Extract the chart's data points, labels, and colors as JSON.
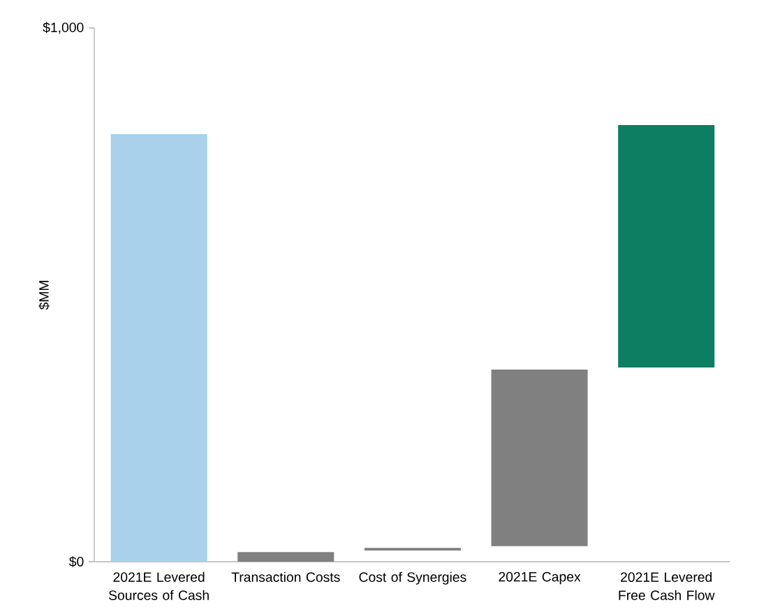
{
  "chart_data": {
    "type": "bar",
    "ylabel": "$MM",
    "categories": [
      "2021E Levered Sources of Cash",
      "Transaction Costs",
      "Cost of Synergies",
      "2021E Capex",
      "2021E Levered Free Cash Flow"
    ],
    "values": [
      801,
      18,
      5,
      331,
      454
    ],
    "base": [
      0,
      0,
      21,
      29,
      364
    ],
    "colors": [
      "#a9d1ec",
      "#808080",
      "#808080",
      "#808080",
      "#0e7e63"
    ],
    "ylim": [
      0,
      1000
    ],
    "yticks": [
      {
        "value": 0,
        "label": "$0"
      },
      {
        "value": 1000,
        "label": "$1,000"
      }
    ],
    "grid": false
  }
}
